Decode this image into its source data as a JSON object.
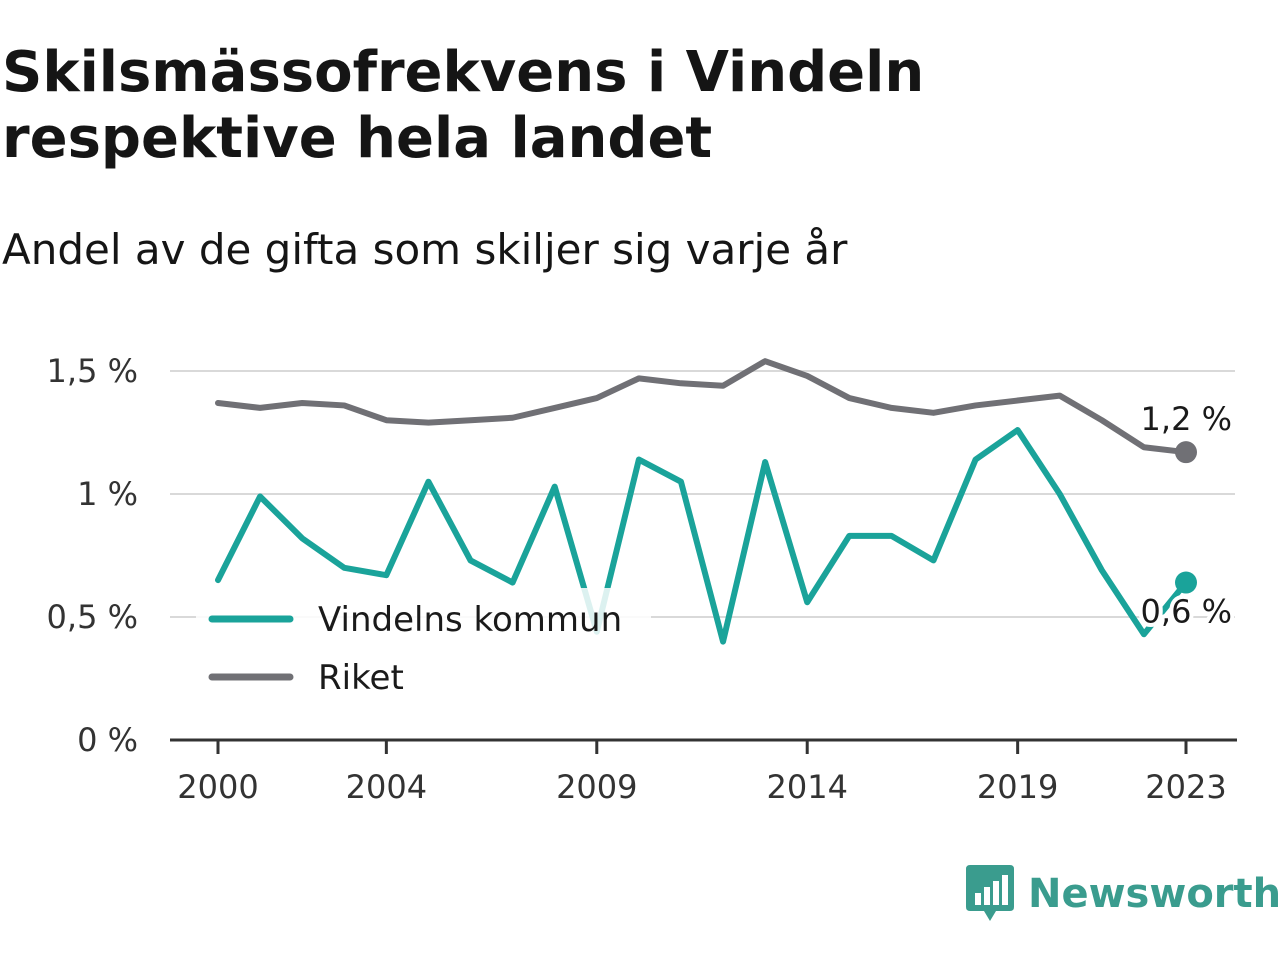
{
  "header": {
    "title": "Skilsmässofrekvens i Vindeln respektive hela landet",
    "subtitle": "Andel av de gifta som skiljer sig varje år"
  },
  "brand": {
    "name": "Newsworthy",
    "color": "#3a9c8e"
  },
  "chart_data": {
    "type": "line",
    "title": "Skilsmässofrekvens i Vindeln respektive hela landet",
    "subtitle": "Andel av de gifta som skiljer sig varje år",
    "x": [
      2000,
      2001,
      2002,
      2003,
      2004,
      2005,
      2006,
      2007,
      2008,
      2009,
      2010,
      2011,
      2012,
      2013,
      2014,
      2015,
      2016,
      2017,
      2018,
      2019,
      2020,
      2021,
      2022,
      2023
    ],
    "x_ticks": [
      2000,
      2004,
      2009,
      2014,
      2019,
      2023
    ],
    "y_ticks": [
      {
        "value": 0,
        "label": "0 %"
      },
      {
        "value": 0.5,
        "label": "0,5 %"
      },
      {
        "value": 1,
        "label": "1 %"
      },
      {
        "value": 1.5,
        "label": "1,5 %"
      }
    ],
    "ylim": [
      0,
      1.6
    ],
    "grid": true,
    "legend_position": "bottom-left",
    "series": [
      {
        "name": "Vindelns kommun",
        "color": "#1aa39a",
        "values": [
          0.65,
          0.99,
          0.82,
          0.7,
          0.67,
          1.05,
          0.73,
          0.64,
          1.03,
          0.44,
          1.14,
          1.05,
          0.4,
          1.13,
          0.56,
          0.83,
          0.83,
          0.73,
          1.14,
          1.26,
          1.0,
          0.69,
          0.43,
          0.64
        ],
        "end_label": "0,6 %"
      },
      {
        "name": "Riket",
        "color": "#707075",
        "values": [
          1.37,
          1.35,
          1.37,
          1.36,
          1.3,
          1.29,
          1.3,
          1.31,
          1.35,
          1.39,
          1.47,
          1.45,
          1.44,
          1.54,
          1.48,
          1.39,
          1.35,
          1.33,
          1.36,
          1.38,
          1.4,
          1.3,
          1.19,
          1.17
        ],
        "end_label": "1,2 %"
      }
    ]
  }
}
